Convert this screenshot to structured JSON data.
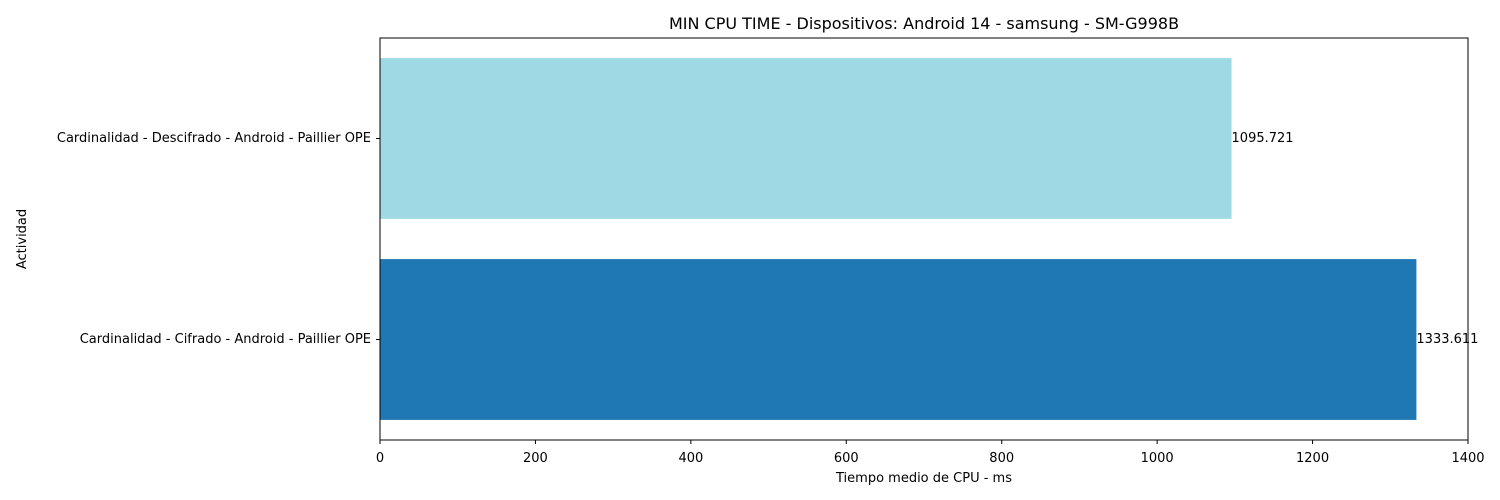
{
  "chart_data": {
    "type": "bar",
    "orientation": "horizontal",
    "title": "MIN CPU TIME - Dispositivos: Android 14 - samsung - SM-G998B",
    "xlabel": "Tiempo medio de CPU - ms",
    "ylabel": "Actividad",
    "xlim": [
      0,
      1400
    ],
    "xticks": [
      0,
      200,
      400,
      600,
      800,
      1000,
      1200,
      1400
    ],
    "xtick_labels": [
      "0",
      "200",
      "400",
      "600",
      "800",
      "1000",
      "1200",
      "1400"
    ],
    "categories": [
      "Cardinalidad - Descifrado - Android - Paillier OPE",
      "Cardinalidad - Cifrado - Android - Paillier OPE"
    ],
    "values": [
      1095.721,
      1333.611
    ],
    "value_labels": [
      "1095.721",
      "1333.611"
    ],
    "bar_colors": [
      "#9fdae4",
      "#1f77b4"
    ],
    "grid": false,
    "legend": "none"
  }
}
